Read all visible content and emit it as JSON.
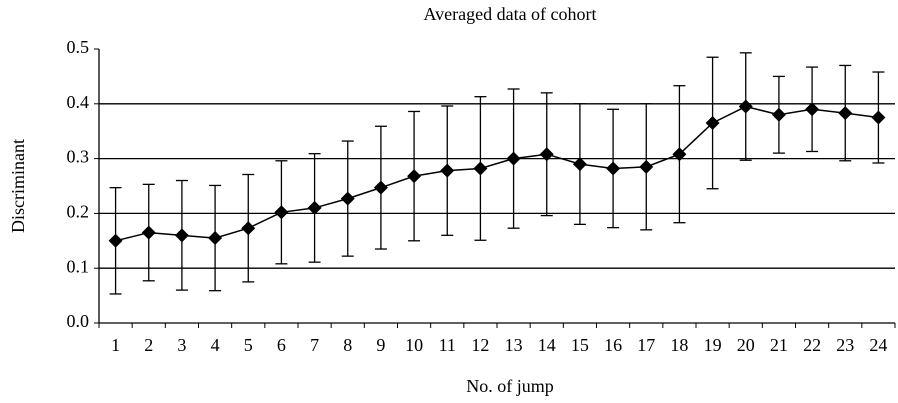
{
  "chart_data": {
    "type": "line",
    "title": "Averaged data of cohort",
    "x_label": "No. of jump",
    "y_label": "Discriminant",
    "categories": [
      "1",
      "2",
      "3",
      "4",
      "5",
      "6",
      "7",
      "8",
      "9",
      "10",
      "11",
      "12",
      "13",
      "14",
      "15",
      "16",
      "17",
      "18",
      "19",
      "20",
      "21",
      "22",
      "23",
      "24"
    ],
    "series": [
      {
        "color": "#000000",
        "values": [
          0.15,
          0.165,
          0.16,
          0.155,
          0.173,
          0.202,
          0.21,
          0.227,
          0.247,
          0.268,
          0.278,
          0.282,
          0.3,
          0.308,
          0.29,
          0.282,
          0.285,
          0.308,
          0.365,
          0.395,
          0.38,
          0.39,
          0.383,
          0.375
        ],
        "errors": [
          0.097,
          0.088,
          0.1,
          0.096,
          0.098,
          0.094,
          0.099,
          0.105,
          0.112,
          0.118,
          0.118,
          0.131,
          0.127,
          0.112,
          0.11,
          0.108,
          0.115,
          0.125,
          0.12,
          0.098,
          0.07,
          0.077,
          0.087,
          0.083
        ]
      }
    ],
    "ylim": [
      0,
      0.5
    ],
    "yticks": [
      {
        "value": 0,
        "label": "0.0"
      },
      0.1,
      0.2,
      0.3,
      0.4,
      0.5
    ],
    "grid": true
  }
}
